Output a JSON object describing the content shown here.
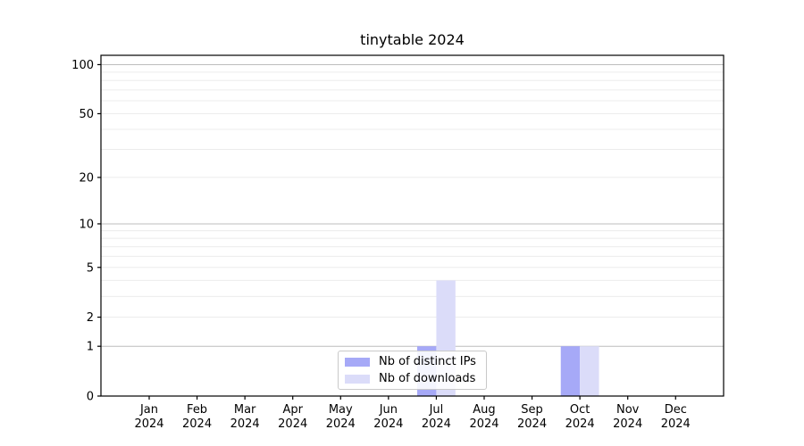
{
  "chart_data": {
    "type": "bar",
    "title": "tinytable 2024",
    "categories": [
      "Jan 2024",
      "Feb 2024",
      "Mar 2024",
      "Apr 2024",
      "May 2024",
      "Jun 2024",
      "Jul 2024",
      "Aug 2024",
      "Sep 2024",
      "Oct 2024",
      "Nov 2024",
      "Dec 2024"
    ],
    "series": [
      {
        "name": "Nb of distinct IPs",
        "color": "#a6a9f7",
        "values": [
          0,
          0,
          0,
          0,
          0,
          0,
          1,
          0,
          0,
          1,
          0,
          0
        ]
      },
      {
        "name": "Nb of downloads",
        "color": "#dbdcf9",
        "values": [
          0,
          0,
          0,
          0,
          0,
          0,
          4,
          0,
          0,
          1,
          0,
          0
        ]
      }
    ],
    "yscale": "log1p",
    "ylim": [
      0,
      114
    ],
    "yticks": [
      100,
      50,
      20,
      10,
      5,
      2,
      1,
      0
    ],
    "minor_gridlines": [
      2,
      3,
      4,
      5,
      6,
      7,
      8,
      9,
      20,
      30,
      40,
      50,
      60,
      70,
      80,
      90
    ],
    "major_gridlines": [
      1,
      10,
      100
    ],
    "grid": true,
    "legend_position": "lower center inset",
    "colors": {
      "axis": "#000000",
      "major_grid": "#bdbdbd",
      "minor_grid": "#ececec",
      "background": "#ffffff"
    }
  }
}
